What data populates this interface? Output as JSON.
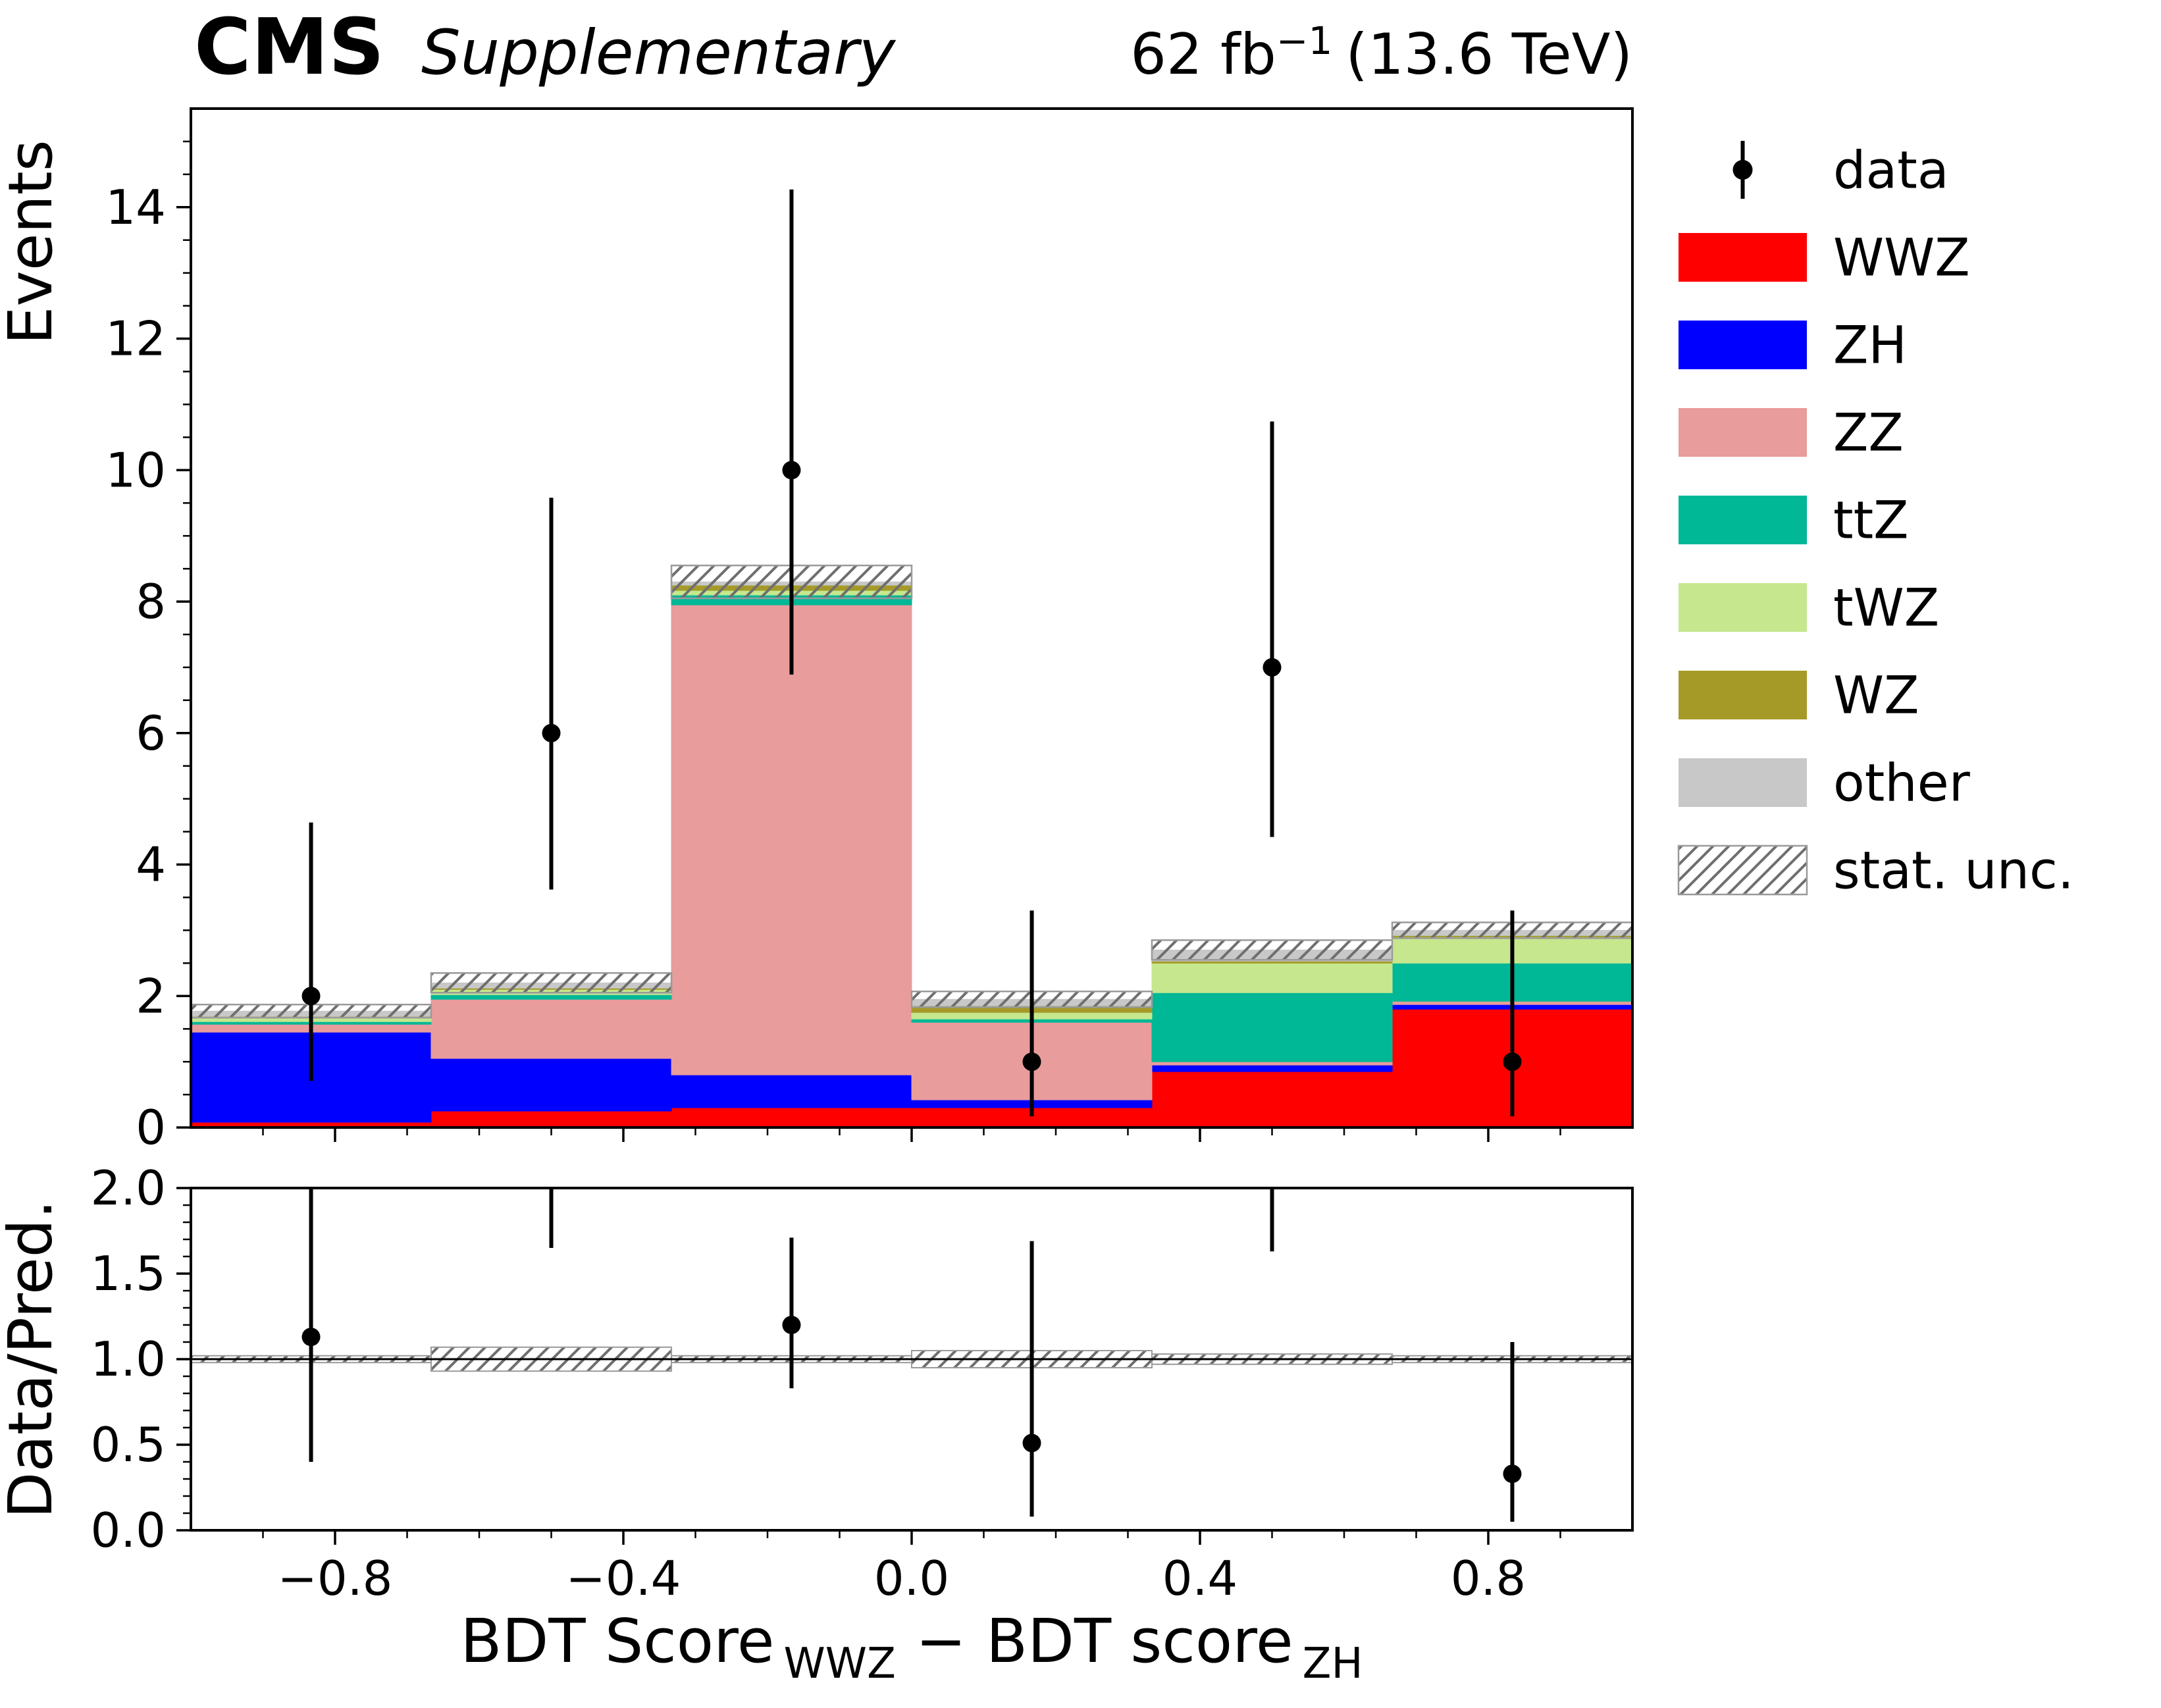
{
  "header": {
    "experiment": "CMS",
    "label": "Supplementary",
    "lumi": {
      "prefix": "62 fb",
      "superscript": "−1",
      "suffix": "(13.6 TeV)"
    }
  },
  "legend": {
    "items": [
      {
        "label": "data",
        "type": "marker",
        "color": "#000000"
      },
      {
        "label": "WWZ",
        "type": "fill",
        "color": "#ff0000"
      },
      {
        "label": "ZH",
        "type": "fill",
        "color": "#0000ff"
      },
      {
        "label": "ZZ",
        "type": "fill",
        "color": "#e89c9c"
      },
      {
        "label": "ttZ",
        "type": "fill",
        "color": "#00b796"
      },
      {
        "label": "tWZ",
        "type": "fill",
        "color": "#c6e78e"
      },
      {
        "label": "WZ",
        "type": "fill",
        "color": "#a59a28"
      },
      {
        "label": "other",
        "type": "fill",
        "color": "#c8c8c8"
      },
      {
        "label": "stat. unc.",
        "type": "hatch",
        "color": "#6f6f6f"
      }
    ]
  },
  "chart_data": {
    "type": "bar",
    "subtype": "stacked histogram with data points and ratio panel",
    "x_edges": [
      -1.0,
      -0.6667,
      -0.3333,
      0.0,
      0.3333,
      0.6667,
      1.0
    ],
    "x_ticks": [
      -0.8,
      -0.4,
      0.0,
      0.4,
      0.8
    ],
    "x_tick_labels": [
      "−0.8",
      "−0.4",
      "0.0",
      "0.4",
      "0.8"
    ],
    "xlabel": {
      "part1": "BDT Score",
      "sub1": "WWZ",
      "operator": "−",
      "part2": "BDT score",
      "sub2": "ZH"
    },
    "top_panel": {
      "ylabel": "Events",
      "ylim": [
        0,
        15.5
      ],
      "y_ticks": [
        0,
        2,
        4,
        6,
        8,
        10,
        12,
        14
      ],
      "y_tick_labels": [
        "0",
        "2",
        "4",
        "6",
        "8",
        "10",
        "12",
        "14"
      ],
      "series": [
        {
          "name": "WWZ",
          "color": "#ff0000",
          "values": [
            0.08,
            0.25,
            0.3,
            0.3,
            0.85,
            1.8
          ]
        },
        {
          "name": "ZH",
          "color": "#0000ff",
          "values": [
            1.37,
            0.8,
            0.5,
            0.12,
            0.1,
            0.07
          ]
        },
        {
          "name": "ZZ",
          "color": "#e89c9c",
          "values": [
            0.12,
            0.9,
            7.15,
            1.18,
            0.05,
            0.05
          ]
        },
        {
          "name": "ttZ",
          "color": "#00b796",
          "values": [
            0.04,
            0.07,
            0.15,
            0.05,
            1.05,
            0.58
          ]
        },
        {
          "name": "tWZ",
          "color": "#c6e78e",
          "values": [
            0.06,
            0.08,
            0.07,
            0.1,
            0.45,
            0.4
          ]
        },
        {
          "name": "WZ",
          "color": "#a59a28",
          "values": [
            0.02,
            0.02,
            0.08,
            0.1,
            0.03,
            0.02
          ]
        },
        {
          "name": "other",
          "color": "#c8c8c8",
          "values": [
            0.08,
            0.08,
            0.05,
            0.1,
            0.17,
            0.08
          ]
        }
      ],
      "totals": [
        1.77,
        2.2,
        8.3,
        1.95,
        2.7,
        3.0
      ],
      "stat_unc": [
        0.1,
        0.15,
        0.25,
        0.12,
        0.15,
        0.12
      ],
      "data_points": {
        "x": [
          -0.8333,
          -0.5,
          -0.1667,
          0.1667,
          0.5,
          0.8333
        ],
        "y": [
          2,
          6,
          10,
          1,
          7,
          1
        ],
        "yerr_low": [
          1.29,
          2.38,
          3.11,
          0.83,
          2.58,
          0.83
        ],
        "yerr_high": [
          2.64,
          3.58,
          4.27,
          2.3,
          3.74,
          2.3
        ]
      }
    },
    "ratio_panel": {
      "ylabel": "Data/Pred.",
      "ylim": [
        0.0,
        2.0
      ],
      "y_ticks": [
        0.0,
        0.5,
        1.0,
        1.5,
        2.0
      ],
      "y_tick_labels": [
        "0.0",
        "0.5",
        "1.0",
        "1.5",
        "2.0"
      ],
      "reference": 1.0,
      "band_halfwidth": [
        0.02,
        0.07,
        0.02,
        0.05,
        0.03,
        0.02
      ],
      "points": {
        "x": [
          -0.8333,
          -0.5,
          -0.1667,
          0.1667,
          0.5,
          0.8333
        ],
        "y": [
          1.13,
          2.73,
          1.2,
          0.51,
          2.59,
          0.33
        ],
        "yerr_low": [
          0.73,
          1.08,
          0.37,
          0.43,
          0.96,
          0.28
        ],
        "yerr_high": [
          1.49,
          1.63,
          0.51,
          1.18,
          1.38,
          0.77
        ]
      }
    }
  }
}
